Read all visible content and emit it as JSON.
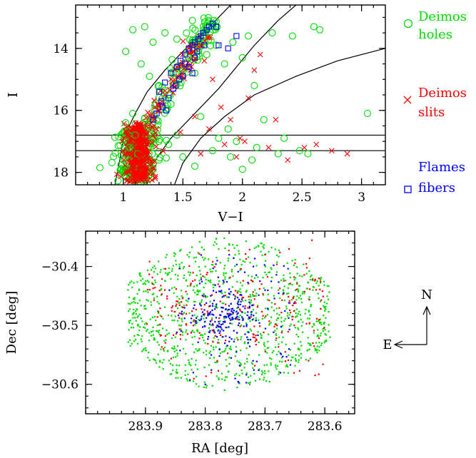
{
  "colors": {
    "deimos_holes": "#00dd00",
    "deimos_slits": "#ff0000",
    "flames_fibers": "#0000ff",
    "axes": "#000000"
  },
  "chart_data": [
    {
      "type": "scatter",
      "xlabel": "V−I",
      "ylabel": "I",
      "xlim": [
        0.6,
        3.2
      ],
      "ylim": [
        18.4,
        12.6
      ],
      "x_ticks": [
        1,
        1.5,
        2,
        2.5,
        3
      ],
      "x_tick_labels": [
        "1",
        "1.5",
        "2",
        "2.5",
        "3"
      ],
      "y_ticks": [
        14,
        16,
        18
      ],
      "y_tick_labels": [
        "14",
        "16",
        "18"
      ],
      "legend_position": "right-outside",
      "legend": [
        {
          "key": "holes",
          "marker": "circle",
          "color": "#00dd00",
          "line1": "Deimos",
          "line2": "holes"
        },
        {
          "key": "slits",
          "marker": "x",
          "color": "#ff0000",
          "line1": "Deimos",
          "line2": "slits"
        },
        {
          "key": "fibers",
          "marker": "square",
          "color": "#0000ff",
          "line1": "Flames",
          "line2": "fibers"
        }
      ],
      "horizontal_lines_I": [
        16.8,
        17.3
      ],
      "selection_curves": [
        [
          [
            0.93,
            18.4
          ],
          [
            0.97,
            17.6
          ],
          [
            1.0,
            16.9
          ],
          [
            1.1,
            16.1
          ],
          [
            1.2,
            15.4
          ],
          [
            1.35,
            14.7
          ],
          [
            1.55,
            13.9
          ],
          [
            1.75,
            13.2
          ],
          [
            1.9,
            12.6
          ]
        ],
        [
          [
            1.17,
            18.4
          ],
          [
            1.25,
            17.7
          ],
          [
            1.4,
            16.9
          ],
          [
            1.6,
            16.1
          ],
          [
            1.8,
            15.3
          ],
          [
            1.95,
            14.6
          ],
          [
            2.1,
            13.9
          ],
          [
            2.3,
            13.1
          ],
          [
            2.45,
            12.6
          ]
        ],
        [
          [
            1.43,
            18.4
          ],
          [
            1.5,
            17.7
          ],
          [
            1.65,
            16.9
          ],
          [
            1.85,
            16.2
          ],
          [
            2.1,
            15.5
          ],
          [
            2.45,
            14.9
          ],
          [
            2.8,
            14.4
          ],
          [
            3.2,
            14.0
          ]
        ]
      ],
      "series": [
        {
          "name": "Deimos holes",
          "marker": "circle",
          "color": "#00dd00",
          "points": [
            [
              1.02,
              14.1
            ],
            [
              1.08,
              13.4
            ],
            [
              1.15,
              14.5
            ],
            [
              1.22,
              14.9
            ],
            [
              1.3,
              15.2
            ],
            [
              1.42,
              15.0
            ],
            [
              1.55,
              14.3
            ],
            [
              1.6,
              14.8
            ],
            [
              1.7,
              14.2
            ],
            [
              1.78,
              13.9
            ],
            [
              1.85,
              14.5
            ],
            [
              1.92,
              13.8
            ],
            [
              2.0,
              14.3
            ],
            [
              2.05,
              13.6
            ],
            [
              2.1,
              15.2
            ],
            [
              2.18,
              16.3
            ],
            [
              2.25,
              13.5
            ],
            [
              2.3,
              17.4
            ],
            [
              2.42,
              13.6
            ],
            [
              2.55,
              17.4
            ],
            [
              2.6,
              13.3
            ],
            [
              2.65,
              13.4
            ],
            [
              3.05,
              16.1
            ],
            [
              1.88,
              16.6
            ],
            [
              1.95,
              17.0
            ],
            [
              2.08,
              17.6
            ],
            [
              2.12,
              17.2
            ],
            [
              1.75,
              17.3
            ],
            [
              1.6,
              17.8
            ],
            [
              1.5,
              17.5
            ],
            [
              1.45,
              16.8
            ],
            [
              1.38,
              17.1
            ],
            [
              1.3,
              17.6
            ],
            [
              1.25,
              17.9
            ],
            [
              1.2,
              16.5
            ],
            [
              1.1,
              16.8
            ],
            [
              1.05,
              17.2
            ],
            [
              1.0,
              17.6
            ],
            [
              0.98,
              17.9
            ],
            [
              1.12,
              17.4
            ],
            [
              1.4,
              15.8
            ],
            [
              1.65,
              16.2
            ],
            [
              1.8,
              16.9
            ],
            [
              2.35,
              16.9
            ],
            [
              2.48,
              17.3
            ],
            [
              2.0,
              17.9
            ],
            [
              1.9,
              17.5
            ],
            [
              1.35,
              13.5
            ],
            [
              1.25,
              13.8
            ],
            [
              1.18,
              13.3
            ],
            [
              1.45,
              13.7
            ],
            [
              1.58,
              13.1
            ],
            [
              1.02,
              16.4
            ],
            [
              1.08,
              16.1
            ]
          ]
        },
        {
          "name": "Deimos slits",
          "marker": "x",
          "color": "#ff0000",
          "points": [
            [
              1.05,
              17.0
            ],
            [
              1.1,
              17.2
            ],
            [
              1.12,
              16.9
            ],
            [
              1.15,
              17.4
            ],
            [
              1.08,
              17.7
            ],
            [
              1.18,
              17.9
            ],
            [
              1.2,
              17.1
            ],
            [
              1.0,
              17.3
            ],
            [
              1.03,
              16.7
            ],
            [
              1.14,
              16.5
            ],
            [
              1.22,
              17.6
            ],
            [
              1.25,
              16.8
            ],
            [
              1.06,
              17.9
            ],
            [
              1.1,
              18.0
            ],
            [
              1.17,
              16.7
            ],
            [
              1.28,
              16.6
            ],
            [
              1.3,
              16.0
            ],
            [
              1.35,
              15.5
            ],
            [
              1.4,
              15.0
            ],
            [
              1.45,
              14.6
            ],
            [
              1.5,
              14.2
            ],
            [
              1.55,
              14.0
            ],
            [
              1.62,
              13.9
            ],
            [
              1.68,
              14.4
            ],
            [
              1.75,
              15.0
            ],
            [
              1.82,
              15.9
            ],
            [
              1.9,
              16.3
            ],
            [
              1.98,
              16.9
            ],
            [
              2.05,
              15.6
            ],
            [
              2.1,
              14.7
            ],
            [
              2.15,
              14.2
            ],
            [
              2.22,
              17.2
            ],
            [
              2.38,
              17.6
            ],
            [
              2.62,
              17.1
            ],
            [
              2.75,
              17.3
            ],
            [
              2.88,
              17.4
            ],
            [
              2.52,
              17.2
            ],
            [
              1.72,
              16.6
            ],
            [
              1.6,
              16.2
            ],
            [
              1.48,
              16.7
            ],
            [
              1.95,
              17.5
            ],
            [
              2.02,
              17.0
            ],
            [
              2.28,
              16.3
            ],
            [
              1.85,
              17.1
            ],
            [
              1.65,
              17.4
            ],
            [
              1.13,
              17.5
            ],
            [
              1.09,
              16.6
            ],
            [
              1.19,
              17.3
            ],
            [
              0.99,
              17.0
            ],
            [
              1.23,
              18.0
            ]
          ]
        },
        {
          "name": "Flames fibers",
          "marker": "square",
          "color": "#0000ff",
          "points": [
            [
              1.3,
              15.4
            ],
            [
              1.35,
              15.1
            ],
            [
              1.4,
              14.8
            ],
            [
              1.45,
              14.6
            ],
            [
              1.48,
              14.4
            ],
            [
              1.52,
              14.2
            ],
            [
              1.55,
              14.0
            ],
            [
              1.58,
              13.9
            ],
            [
              1.6,
              13.8
            ],
            [
              1.63,
              13.7
            ],
            [
              1.65,
              13.6
            ],
            [
              1.67,
              13.5
            ],
            [
              1.7,
              13.4
            ],
            [
              1.72,
              13.3
            ],
            [
              1.75,
              13.2
            ],
            [
              1.78,
              13.3
            ],
            [
              1.6,
              14.3
            ],
            [
              1.55,
              14.6
            ],
            [
              1.5,
              14.9
            ],
            [
              1.42,
              15.3
            ],
            [
              1.38,
              15.6
            ],
            [
              1.33,
              15.9
            ],
            [
              1.28,
              16.1
            ],
            [
              1.25,
              16.3
            ],
            [
              1.32,
              15.7
            ],
            [
              1.47,
              15.0
            ],
            [
              1.62,
              14.1
            ],
            [
              1.8,
              13.9
            ],
            [
              1.95,
              13.6
            ],
            [
              1.88,
              14.0
            ],
            [
              1.52,
              14.5
            ],
            [
              1.68,
              13.9
            ],
            [
              1.58,
              14.8
            ],
            [
              1.44,
              15.2
            ],
            [
              1.36,
              16.0
            ]
          ]
        }
      ]
    },
    {
      "type": "scatter",
      "xlabel": "RA [deg]",
      "ylabel": "Dec [deg]",
      "xlim": [
        284.0,
        283.55
      ],
      "ylim": [
        -30.65,
        -30.34
      ],
      "x_ticks": [
        283.9,
        283.8,
        283.7,
        283.6
      ],
      "x_tick_labels": [
        "283.9",
        "283.8",
        "283.7",
        "283.6"
      ],
      "y_ticks": [
        -30.4,
        -30.5,
        -30.6
      ],
      "y_tick_labels": [
        "−30.4",
        "−30.5",
        "−30.6"
      ],
      "compass": {
        "north": "N",
        "east": "E"
      },
      "field_center": [
        283.763,
        -30.48
      ],
      "field_extent_ra": [
        283.59,
        283.93
      ],
      "field_extent_dec": [
        -30.6,
        -30.36
      ],
      "series": [
        {
          "name": "Deimos holes",
          "marker": "dot",
          "color": "#00dd00",
          "points": [
            [
              283.9,
              -30.43
            ],
            [
              283.88,
              -30.46
            ],
            [
              283.86,
              -30.41
            ],
            [
              283.84,
              -30.5
            ],
            [
              283.82,
              -30.44
            ],
            [
              283.8,
              -30.4
            ],
            [
              283.78,
              -30.47
            ],
            [
              283.76,
              -30.42
            ],
            [
              283.74,
              -30.5
            ],
            [
              283.72,
              -30.45
            ],
            [
              283.7,
              -30.41
            ],
            [
              283.68,
              -30.48
            ],
            [
              283.66,
              -30.43
            ],
            [
              283.64,
              -30.49
            ],
            [
              283.62,
              -30.44
            ],
            [
              283.6,
              -30.47
            ],
            [
              283.92,
              -30.48
            ],
            [
              283.85,
              -30.52
            ],
            [
              283.67,
              -30.52
            ],
            [
              283.75,
              -30.38
            ],
            [
              283.8,
              -30.53
            ],
            [
              283.71,
              -30.55
            ]
          ]
        },
        {
          "name": "Deimos slits",
          "marker": "dot",
          "color": "#ff0000",
          "points": [
            [
              283.87,
              -30.54
            ],
            [
              283.82,
              -30.5
            ],
            [
              283.78,
              -30.56
            ],
            [
              283.72,
              -30.52
            ],
            [
              283.68,
              -30.5
            ],
            [
              283.65,
              -30.46
            ],
            [
              283.62,
              -30.53
            ],
            [
              283.7,
              -30.38
            ],
            [
              283.66,
              -30.37
            ],
            [
              283.75,
              -30.45
            ],
            [
              283.61,
              -30.42
            ],
            [
              283.84,
              -30.46
            ],
            [
              283.79,
              -30.58
            ]
          ]
        },
        {
          "name": "Flames fibers",
          "marker": "dot",
          "color": "#0000ff",
          "points": [
            [
              283.763,
              -30.48
            ],
            [
              283.77,
              -30.47
            ],
            [
              283.755,
              -30.49
            ],
            [
              283.78,
              -30.5
            ],
            [
              283.745,
              -30.46
            ],
            [
              283.8,
              -30.45
            ],
            [
              283.73,
              -30.52
            ],
            [
              283.79,
              -30.55
            ],
            [
              283.75,
              -30.59
            ],
            [
              283.82,
              -30.58
            ],
            [
              283.84,
              -30.48
            ],
            [
              283.7,
              -30.44
            ],
            [
              283.76,
              -30.38
            ],
            [
              283.78,
              -30.39
            ],
            [
              283.72,
              -30.56
            ],
            [
              283.8,
              -30.6
            ],
            [
              283.66,
              -30.54
            ],
            [
              283.86,
              -30.44
            ]
          ]
        }
      ]
    }
  ]
}
